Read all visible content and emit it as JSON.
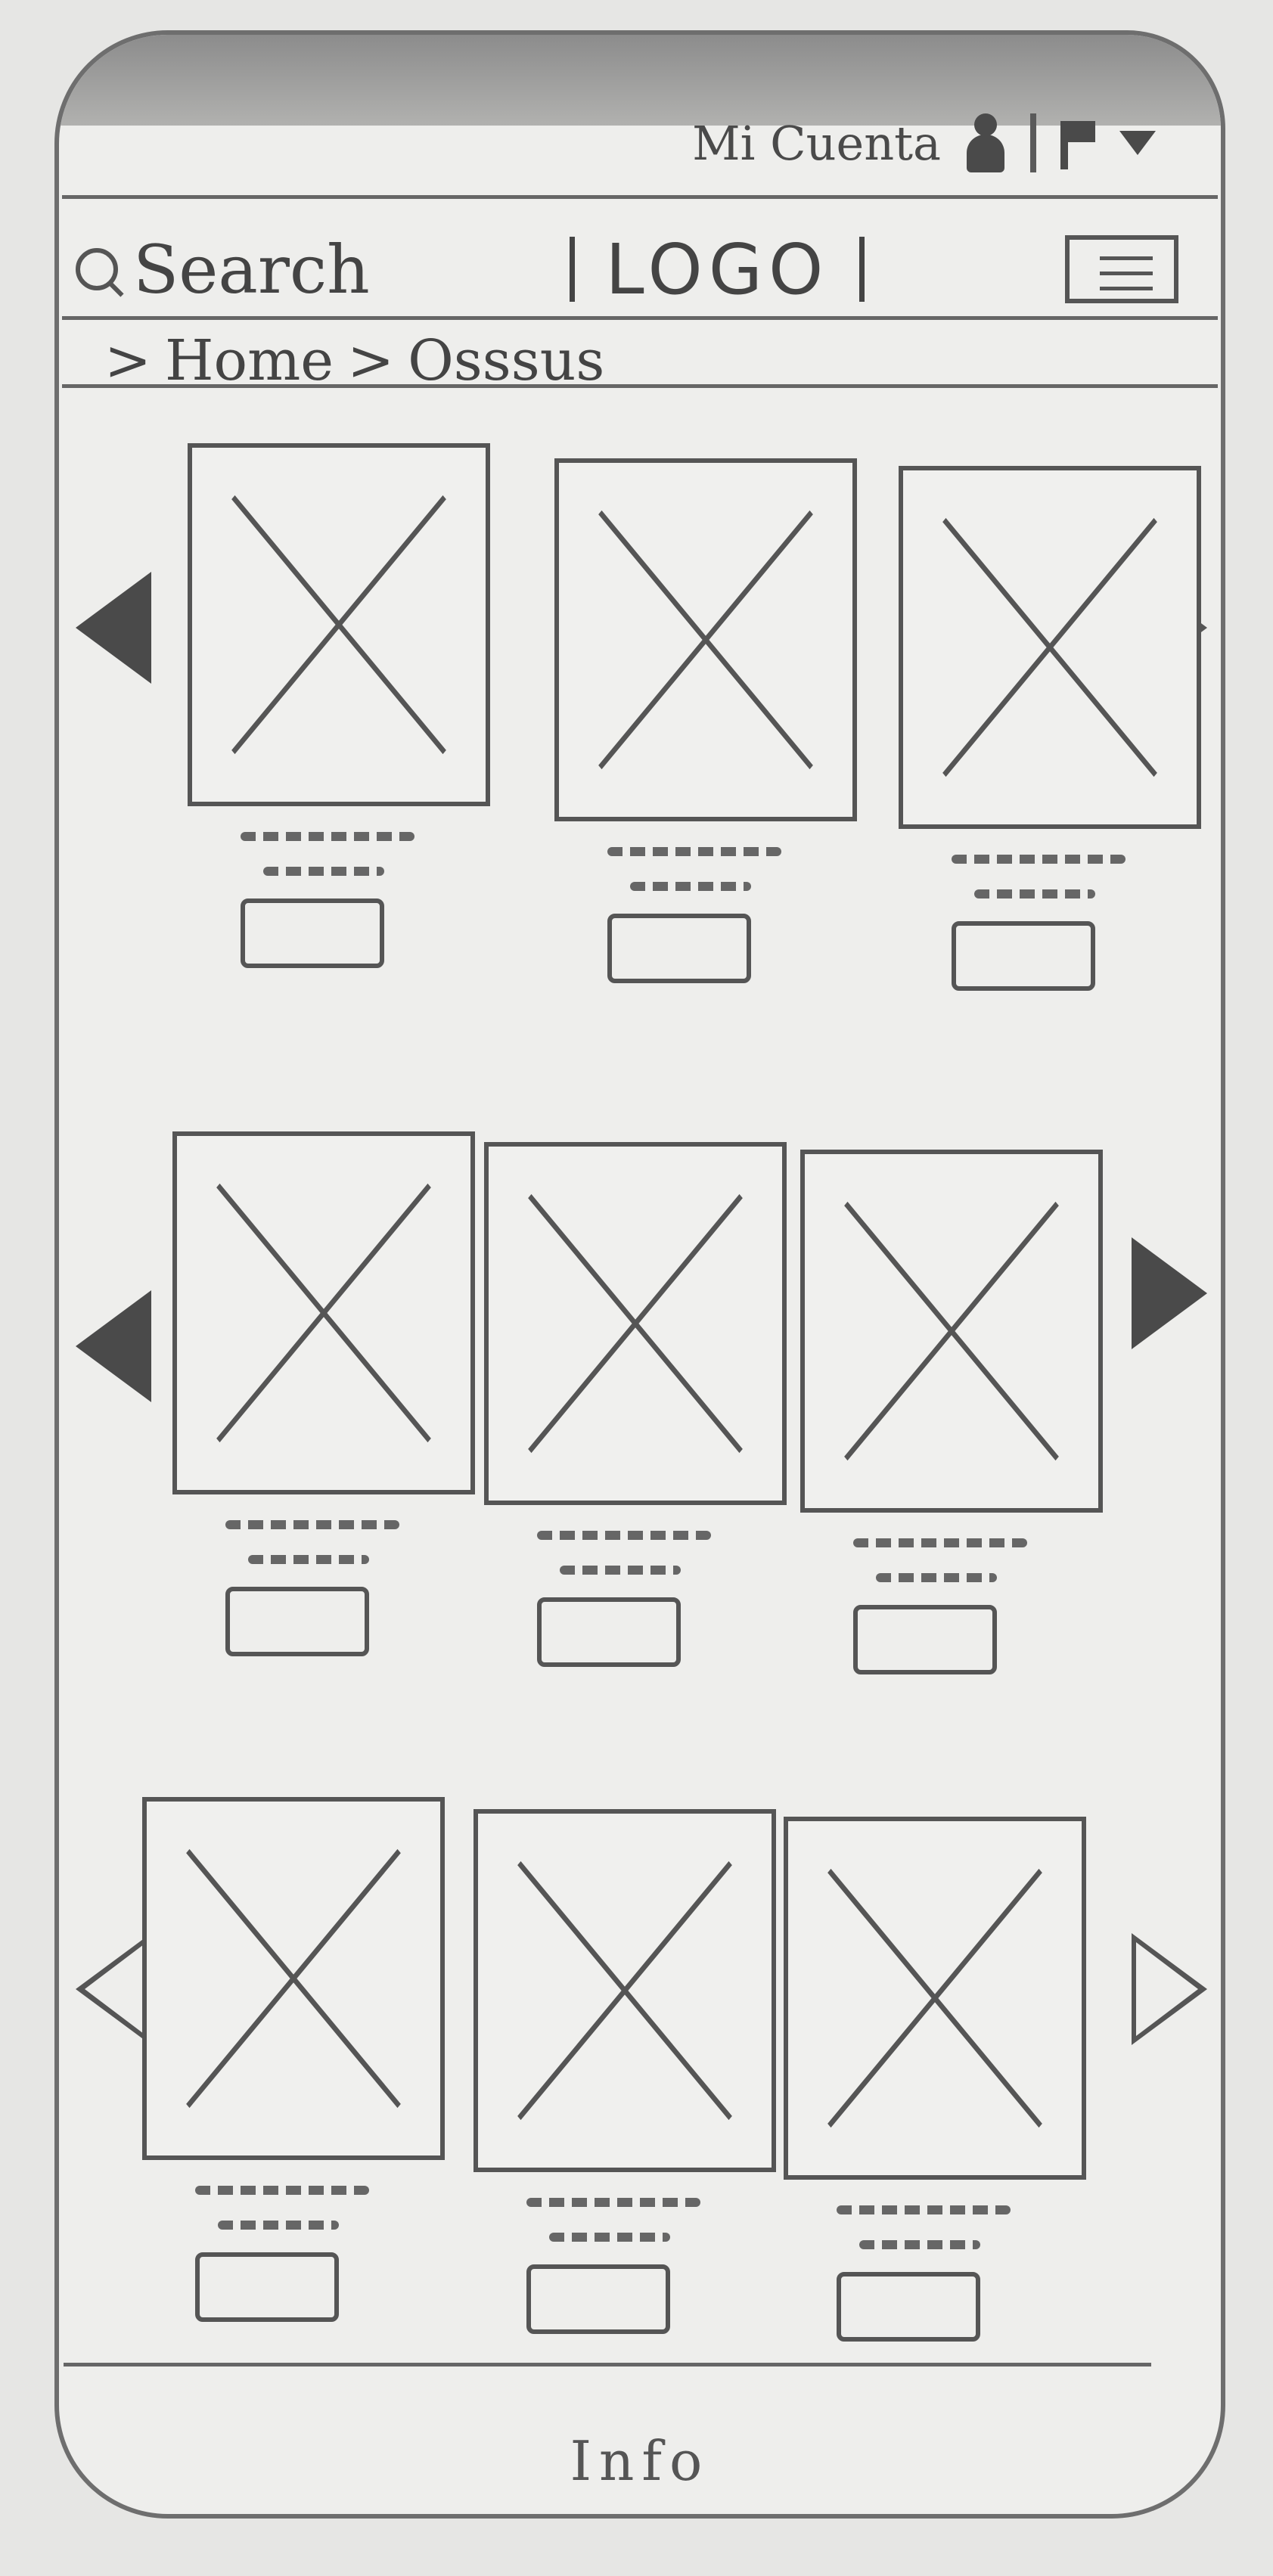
{
  "header": {
    "account_label": "Mi Cuenta"
  },
  "nav": {
    "search_label": "Search",
    "logo_label": "LOGO"
  },
  "breadcrumb": {
    "home": "Home",
    "current": "Osssus"
  },
  "footer": {
    "info": "Info"
  },
  "carousels": [
    {
      "cards": [
        {
          "image": "placeholder-image",
          "button": "action-button"
        },
        {
          "image": "placeholder-image",
          "button": "action-button"
        },
        {
          "image": "placeholder-image",
          "button": "action-button"
        }
      ]
    },
    {
      "cards": [
        {
          "image": "placeholder-image",
          "button": "action-button"
        },
        {
          "image": "placeholder-image",
          "button": "action-button"
        },
        {
          "image": "placeholder-image",
          "button": "action-button"
        }
      ]
    },
    {
      "cards": [
        {
          "image": "placeholder-image",
          "button": "action-button"
        },
        {
          "image": "placeholder-image",
          "button": "action-button"
        },
        {
          "image": "placeholder-image",
          "button": "action-button"
        }
      ]
    }
  ]
}
